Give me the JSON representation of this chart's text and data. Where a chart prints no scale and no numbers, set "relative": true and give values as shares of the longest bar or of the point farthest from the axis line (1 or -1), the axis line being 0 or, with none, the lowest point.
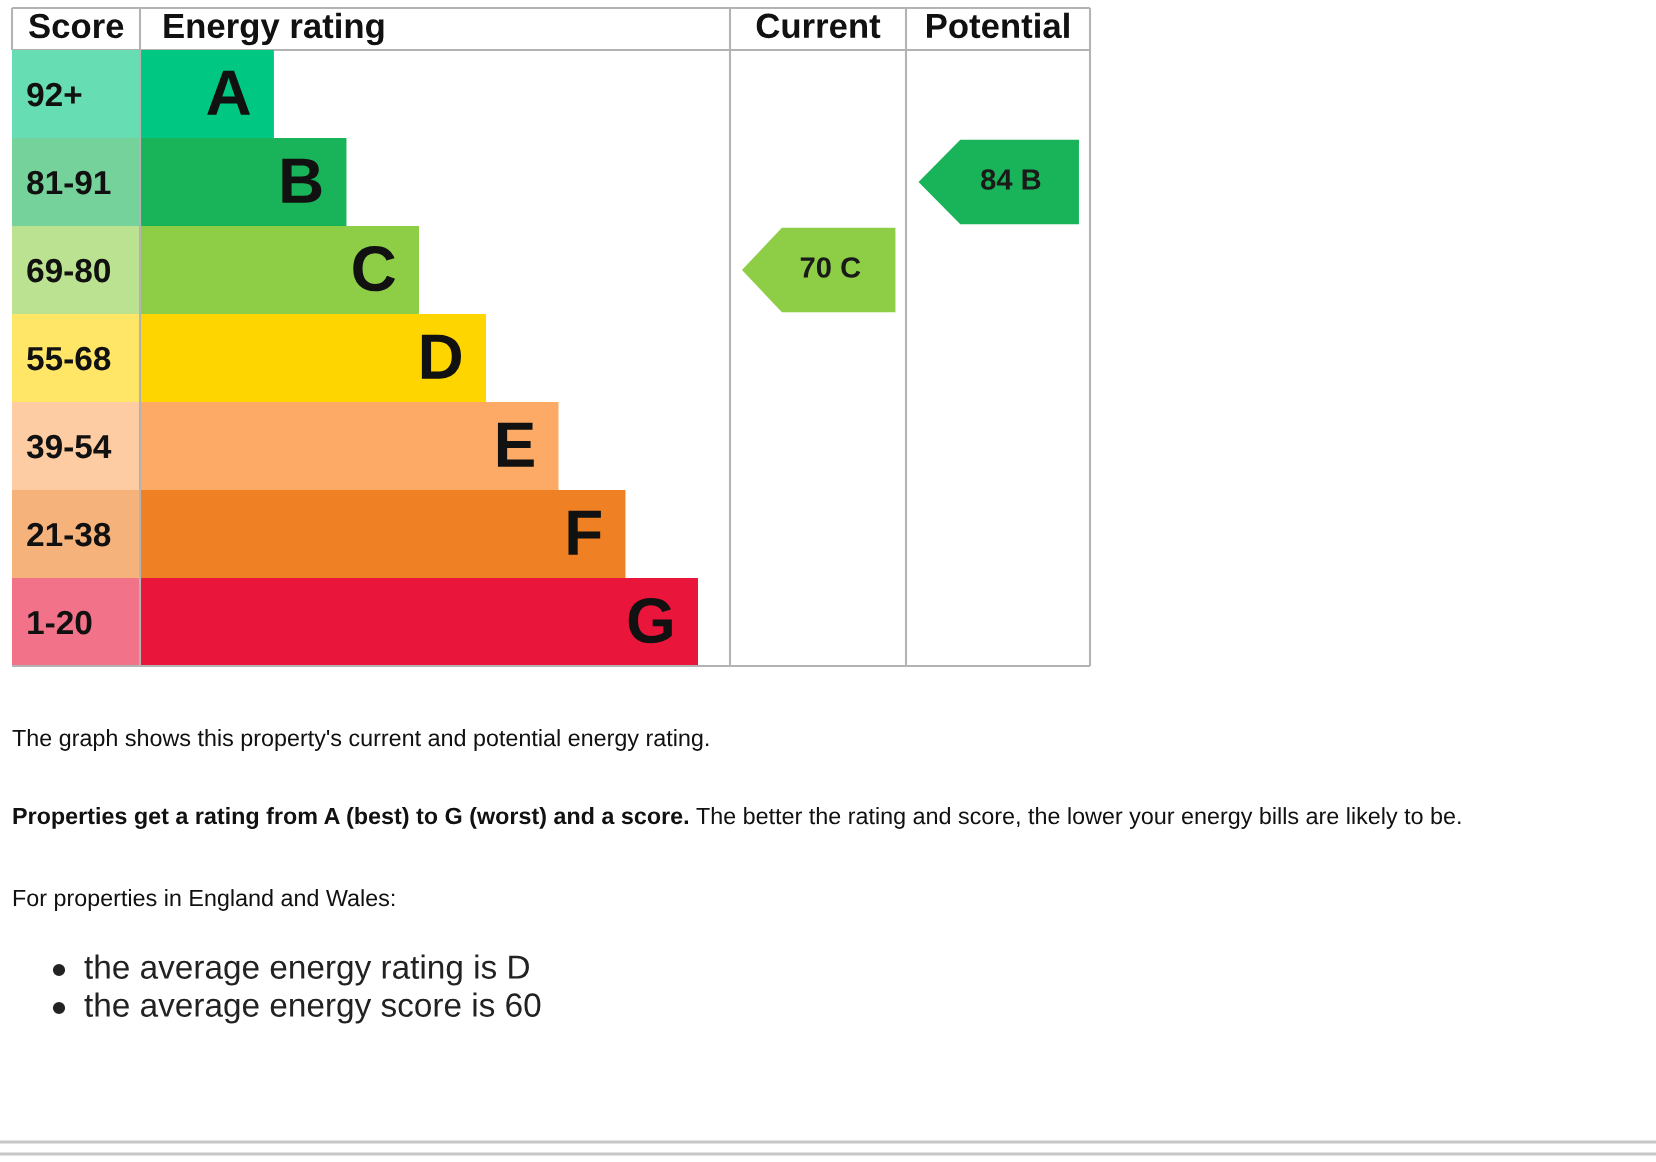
{
  "chart_data": {
    "type": "bar",
    "orientation": "horizontal",
    "relative": true,
    "xlabel": "Energy rating",
    "ylabel": "Score",
    "categories": [
      "92+",
      "81-91",
      "69-80",
      "55-68",
      "39-54",
      "21-38",
      "1-20"
    ],
    "values": [
      0.24,
      0.37,
      0.5,
      0.62,
      0.75,
      0.87,
      1
    ],
    "colors": [
      "#00c781",
      "#19b459",
      "#8dce46",
      "#ffd500",
      "#fcaa65",
      "#ef8023",
      "#e9153b"
    ],
    "annotations": [
      "Current",
      "Potential",
      "70 C",
      "84 B",
      {
        "text": "A",
        "x": 0.24,
        "y": "92+"
      },
      {
        "text": "B",
        "x": 0.37,
        "y": "81-91"
      },
      {
        "text": "C",
        "x": 0.5,
        "y": "69-80"
      },
      {
        "text": "D",
        "x": 0.62,
        "y": "55-68"
      },
      {
        "text": "E",
        "x": 0.75,
        "y": "39-54"
      },
      {
        "text": "F",
        "x": 0.87,
        "y": "21-38"
      },
      {
        "text": "G",
        "x": 1,
        "y": "1-20"
      },
      "The graph shows this property's current and potential energy rating.",
      "Properties get a rating from A (best) to G (worst) and a score.",
      "The better the rating and score, the lower your energy bills are likely to be.",
      "For properties in England and Wales:",
      "the average energy rating is D",
      "the average energy score is 60"
    ]
  }
}
